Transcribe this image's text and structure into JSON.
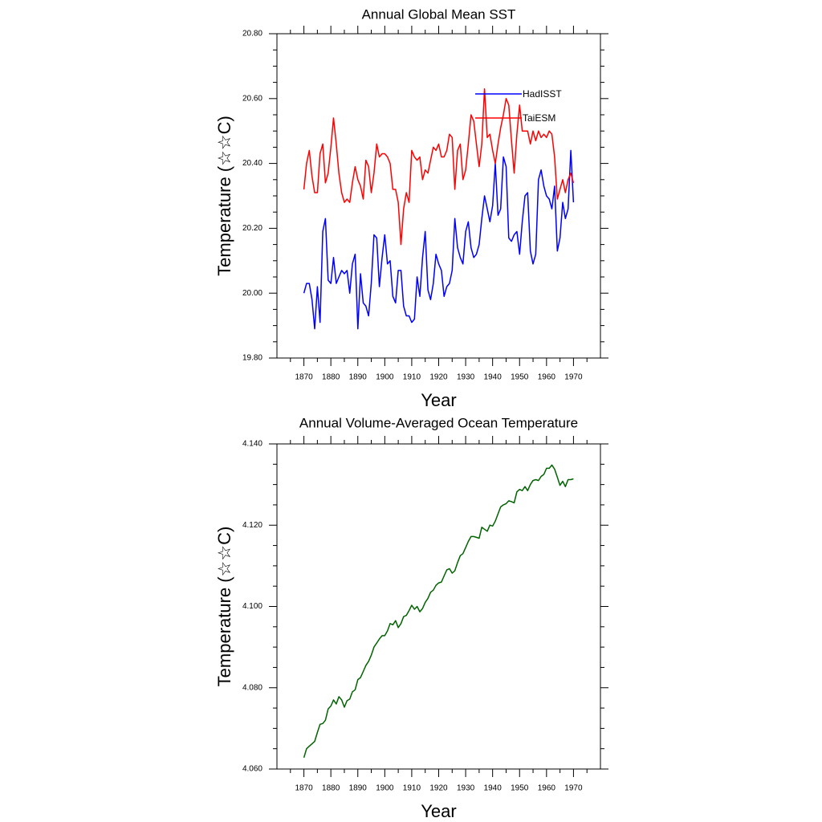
{
  "chart_data": [
    {
      "type": "line",
      "title": "Annual Global Mean SST",
      "xlabel": "Year",
      "ylabel": "Temperature (☆☆C)",
      "xlim": [
        1860,
        1980
      ],
      "ylim": [
        19.8,
        20.8
      ],
      "xticks": [
        "1870",
        "1880",
        "1890",
        "1900",
        "1910",
        "1920",
        "1930",
        "1940",
        "1950",
        "1960",
        "1970"
      ],
      "yticks": [
        "19.80",
        "20.00",
        "20.20",
        "20.40",
        "20.60",
        "20.80"
      ],
      "legend_position": "top-right",
      "x": [
        1870,
        1871,
        1872,
        1873,
        1874,
        1875,
        1876,
        1877,
        1878,
        1879,
        1880,
        1881,
        1882,
        1883,
        1884,
        1885,
        1886,
        1887,
        1888,
        1889,
        1890,
        1891,
        1892,
        1893,
        1894,
        1895,
        1896,
        1897,
        1898,
        1899,
        1900,
        1901,
        1902,
        1903,
        1904,
        1905,
        1906,
        1907,
        1908,
        1909,
        1910,
        1911,
        1912,
        1913,
        1914,
        1915,
        1916,
        1917,
        1918,
        1919,
        1920,
        1921,
        1922,
        1923,
        1924,
        1925,
        1926,
        1927,
        1928,
        1929,
        1930,
        1931,
        1932,
        1933,
        1934,
        1935,
        1936,
        1937,
        1938,
        1939,
        1940,
        1941,
        1942,
        1943,
        1944,
        1945,
        1946,
        1947,
        1948,
        1949,
        1950,
        1951,
        1952,
        1953,
        1954,
        1955,
        1956,
        1957,
        1958,
        1959,
        1960,
        1961,
        1962,
        1963,
        1964,
        1965,
        1966,
        1967,
        1968,
        1969,
        1970
      ],
      "series": [
        {
          "name": "HadISST",
          "color": "#0000ff",
          "values": [
            20.0,
            20.03,
            20.03,
            19.98,
            19.89,
            20.02,
            19.91,
            20.19,
            20.23,
            20.04,
            20.03,
            20.11,
            20.03,
            20.05,
            20.07,
            20.06,
            20.07,
            20.0,
            20.09,
            20.12,
            19.89,
            20.06,
            19.97,
            19.96,
            19.93,
            20.03,
            20.18,
            20.17,
            20.02,
            20.11,
            20.18,
            20.09,
            20.1,
            19.99,
            19.97,
            20.07,
            20.07,
            19.96,
            19.93,
            19.93,
            19.91,
            19.92,
            20.05,
            19.99,
            20.11,
            20.19,
            20.01,
            19.98,
            20.03,
            20.12,
            20.09,
            20.07,
            19.99,
            20.02,
            20.03,
            20.07,
            20.23,
            20.14,
            20.11,
            20.09,
            20.19,
            20.22,
            20.14,
            20.11,
            20.12,
            20.15,
            20.23,
            20.3,
            20.26,
            20.22,
            20.27,
            20.4,
            20.24,
            20.26,
            20.42,
            20.39,
            20.17,
            20.16,
            20.18,
            20.19,
            20.12,
            20.22,
            20.3,
            20.31,
            20.13,
            20.09,
            20.12,
            20.35,
            20.38,
            20.33,
            20.3,
            20.29,
            20.26,
            20.33,
            20.13,
            20.17,
            20.28,
            20.23,
            20.26,
            20.44,
            20.28
          ]
        },
        {
          "name": "TaiESM",
          "color": "#ff0000",
          "values": [
            20.32,
            20.4,
            20.44,
            20.36,
            20.31,
            20.31,
            20.43,
            20.46,
            20.34,
            20.37,
            20.45,
            20.54,
            20.46,
            20.37,
            20.31,
            20.28,
            20.29,
            20.28,
            20.34,
            20.39,
            20.35,
            20.33,
            20.29,
            20.41,
            20.39,
            20.31,
            20.37,
            20.46,
            20.42,
            20.43,
            20.43,
            20.42,
            20.4,
            20.32,
            20.32,
            20.28,
            20.15,
            20.26,
            20.31,
            20.28,
            20.44,
            20.42,
            20.41,
            20.42,
            20.35,
            20.38,
            20.37,
            20.41,
            20.45,
            20.44,
            20.46,
            20.42,
            20.42,
            20.44,
            20.49,
            20.48,
            20.32,
            20.44,
            20.46,
            20.35,
            20.38,
            20.46,
            20.55,
            20.53,
            20.46,
            20.39,
            20.46,
            20.63,
            20.48,
            20.49,
            20.44,
            20.4,
            20.46,
            20.51,
            20.55,
            20.6,
            20.58,
            20.47,
            20.37,
            20.49,
            20.58,
            20.5,
            20.5,
            20.5,
            20.46,
            20.5,
            20.47,
            20.5,
            20.48,
            20.49,
            20.48,
            20.5,
            20.49,
            20.42,
            20.29,
            20.32,
            20.35,
            20.31,
            20.35,
            20.37,
            20.34
          ]
        }
      ]
    },
    {
      "type": "line",
      "title": "Annual Volume-Averaged Ocean Temperature",
      "xlabel": "Year",
      "ylabel": "Temperature (☆☆C)",
      "xlim": [
        1860,
        1980
      ],
      "ylim": [
        4.06,
        4.14
      ],
      "xticks": [
        "1870",
        "1880",
        "1890",
        "1900",
        "1910",
        "1920",
        "1930",
        "1940",
        "1950",
        "1960",
        "1970"
      ],
      "yticks": [
        "4.060",
        "4.080",
        "4.100",
        "4.120",
        "4.140"
      ],
      "x": [
        1870,
        1871,
        1872,
        1873,
        1874,
        1875,
        1876,
        1877,
        1878,
        1879,
        1880,
        1881,
        1882,
        1883,
        1884,
        1885,
        1886,
        1887,
        1888,
        1889,
        1890,
        1891,
        1892,
        1893,
        1894,
        1895,
        1896,
        1897,
        1898,
        1899,
        1900,
        1901,
        1902,
        1903,
        1904,
        1905,
        1906,
        1907,
        1908,
        1909,
        1910,
        1911,
        1912,
        1913,
        1914,
        1915,
        1916,
        1917,
        1918,
        1919,
        1920,
        1921,
        1922,
        1923,
        1924,
        1925,
        1926,
        1927,
        1928,
        1929,
        1930,
        1931,
        1932,
        1933,
        1934,
        1935,
        1936,
        1937,
        1938,
        1939,
        1940,
        1941,
        1942,
        1943,
        1944,
        1945,
        1946,
        1947,
        1948,
        1949,
        1950,
        1951,
        1952,
        1953,
        1954,
        1955,
        1956,
        1957,
        1958,
        1959,
        1960,
        1961,
        1962,
        1963,
        1964,
        1965,
        1966,
        1967,
        1968,
        1969,
        1970
      ],
      "series": [
        {
          "color": "#006400",
          "values": [
            4.0628,
            4.065,
            4.0656,
            4.0662,
            4.0668,
            4.069,
            4.071,
            4.0712,
            4.072,
            4.0748,
            4.0755,
            4.077,
            4.076,
            4.0778,
            4.077,
            4.0752,
            4.0768,
            4.0772,
            4.079,
            4.0795,
            4.082,
            4.0825,
            4.084,
            4.0855,
            4.0865,
            4.088,
            4.09,
            4.091,
            4.092,
            4.0928,
            4.0928,
            4.094,
            4.0958,
            4.0955,
            4.0965,
            4.0948,
            4.0958,
            4.0975,
            4.0978,
            4.099,
            4.1003,
            4.0993,
            4.1,
            4.0987,
            4.0995,
            4.101,
            4.102,
            4.1035,
            4.104,
            4.1052,
            4.1058,
            4.106,
            4.1075,
            4.109,
            4.1093,
            4.1082,
            4.1088,
            4.1108,
            4.1125,
            4.113,
            4.1145,
            4.116,
            4.1172,
            4.1172,
            4.117,
            4.1168,
            4.1195,
            4.119,
            4.1185,
            4.12,
            4.1198,
            4.121,
            4.1228,
            4.1245,
            4.125,
            4.1253,
            4.126,
            4.1258,
            4.1255,
            4.1282,
            4.1288,
            4.1285,
            4.1295,
            4.1285,
            4.13,
            4.131,
            4.1312,
            4.131,
            4.132,
            4.1325,
            4.134,
            4.134,
            4.1348,
            4.1338,
            4.1318,
            4.1298,
            4.1308,
            4.1295,
            4.1312,
            4.1312,
            4.1314
          ]
        }
      ]
    }
  ]
}
